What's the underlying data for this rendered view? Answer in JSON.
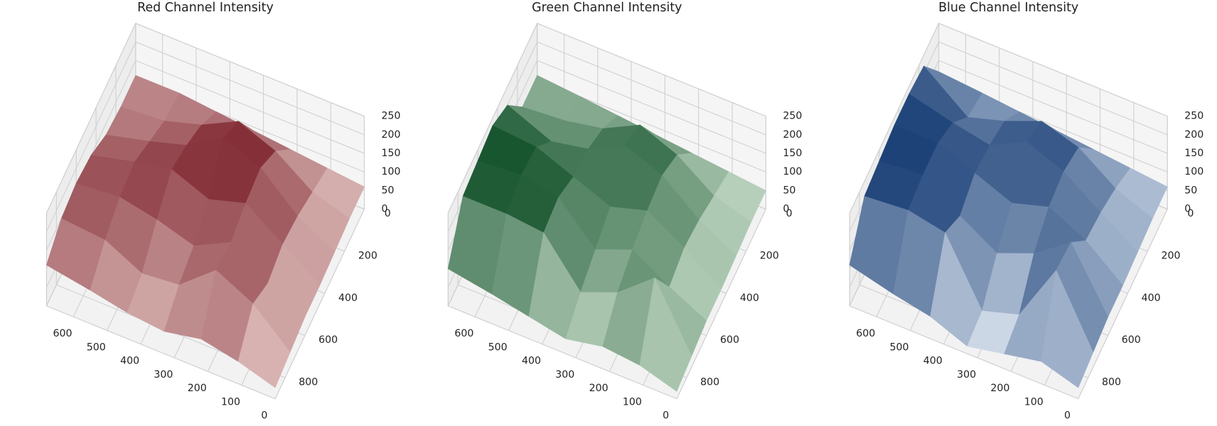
{
  "chart_data": [
    {
      "type": "surface",
      "title": "Red Channel Intensity",
      "cmap": [
        "#fff1ea",
        "#67000d"
      ],
      "x": [
        0,
        110,
        220,
        330,
        440,
        550,
        680
      ],
      "y": [
        0,
        150,
        300,
        450,
        600,
        750,
        900
      ],
      "z": [
        [
          60,
          70,
          80,
          90,
          100,
          110,
          110
        ],
        [
          60,
          90,
          160,
          200,
          150,
          120,
          110
        ],
        [
          55,
          110,
          200,
          240,
          180,
          150,
          120
        ],
        [
          50,
          120,
          190,
          160,
          200,
          180,
          150
        ],
        [
          50,
          100,
          170,
          120,
          150,
          170,
          160
        ],
        [
          40,
          130,
          180,
          100,
          90,
          140,
          150
        ],
        [
          30,
          60,
          80,
          60,
          70,
          90,
          110
        ]
      ],
      "xlim": [
        0,
        680
      ],
      "ylim": [
        0,
        900
      ],
      "zlim": [
        0,
        250
      ],
      "xticks": [
        0,
        100,
        200,
        300,
        400,
        500,
        600
      ],
      "yticks": [
        0,
        200,
        400,
        600,
        800
      ],
      "zticks": [
        0,
        50,
        100,
        150,
        200,
        250
      ]
    },
    {
      "type": "surface",
      "title": "Green Channel Intensity",
      "cmap": [
        "#f0fbec",
        "#00441b"
      ],
      "x": [
        0,
        110,
        220,
        330,
        440,
        550,
        680
      ],
      "y": [
        0,
        150,
        300,
        450,
        600,
        750,
        900
      ],
      "z": [
        [
          50,
          60,
          70,
          80,
          90,
          100,
          110
        ],
        [
          50,
          80,
          150,
          190,
          140,
          120,
          110
        ],
        [
          45,
          100,
          180,
          220,
          170,
          150,
          200
        ],
        [
          40,
          110,
          170,
          140,
          180,
          220,
          230
        ],
        [
          40,
          90,
          150,
          110,
          210,
          230,
          220
        ],
        [
          30,
          200,
          120,
          80,
          200,
          210,
          210
        ],
        [
          20,
          50,
          60,
          40,
          60,
          80,
          100
        ]
      ],
      "xlim": [
        0,
        680
      ],
      "ylim": [
        0,
        900
      ],
      "zlim": [
        0,
        250
      ],
      "xticks": [
        0,
        100,
        200,
        300,
        400,
        500,
        600
      ],
      "yticks": [
        0,
        200,
        400,
        600,
        800
      ],
      "zticks": [
        0,
        50,
        100,
        150,
        200,
        250
      ]
    },
    {
      "type": "surface",
      "title": "Blue Channel Intensity",
      "cmap": [
        "#eef5fc",
        "#08306b"
      ],
      "x": [
        0,
        110,
        220,
        330,
        440,
        550,
        680
      ],
      "y": [
        0,
        150,
        300,
        450,
        600,
        750,
        900
      ],
      "z": [
        [
          60,
          70,
          80,
          90,
          100,
          110,
          120
        ],
        [
          60,
          100,
          170,
          200,
          160,
          130,
          220
        ],
        [
          55,
          120,
          190,
          230,
          180,
          200,
          230
        ],
        [
          50,
          130,
          180,
          150,
          190,
          230,
          230
        ],
        [
          50,
          210,
          140,
          100,
          160,
          230,
          220
        ],
        [
          40,
          220,
          60,
          30,
          200,
          220,
          210
        ],
        [
          30,
          60,
          40,
          20,
          60,
          80,
          110
        ]
      ],
      "xlim": [
        0,
        680
      ],
      "ylim": [
        0,
        900
      ],
      "zlim": [
        0,
        250
      ],
      "xticks": [
        0,
        100,
        200,
        300,
        400,
        500,
        600
      ],
      "yticks": [
        0,
        200,
        400,
        600,
        800
      ],
      "zticks": [
        0,
        50,
        100,
        150,
        200,
        250
      ]
    }
  ]
}
